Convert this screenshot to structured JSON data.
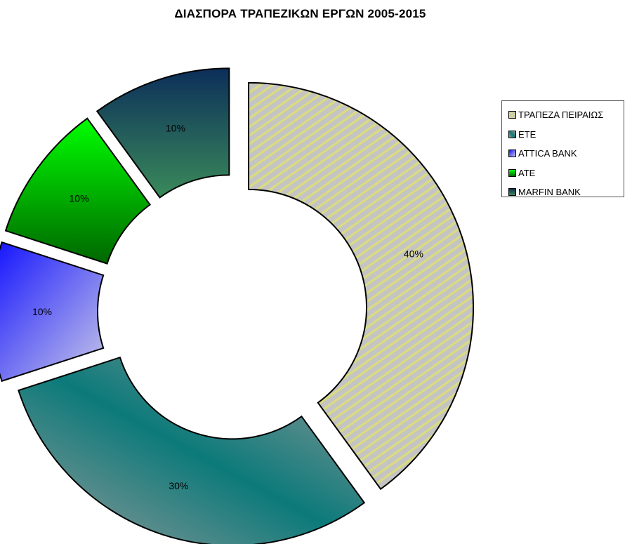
{
  "chart_data": {
    "type": "pie",
    "title": "ΔΙΑΣΠΟΡΑ ΤΡΑΠΕΖΙΚΩΝ ΕΡΓΩΝ 2005-2015",
    "variant": "doughnut, exploded slices",
    "categories": [
      "ΤΡΑΠΕΖΑ ΠΕΙΡΑΙΩΣ",
      "ΕΤΕ",
      "ATTICA BANK",
      "ΑΤΕ",
      "MARFIN BANK"
    ],
    "values": [
      40,
      30,
      10,
      10,
      10
    ],
    "data_labels": [
      "40%",
      "30%",
      "10%",
      "10%",
      "10%"
    ],
    "legend_position": "right",
    "colors": [
      "#c8c89a",
      "#1f8080",
      "#3333ff",
      "#00cc00",
      "#1a4a6a"
    ]
  }
}
